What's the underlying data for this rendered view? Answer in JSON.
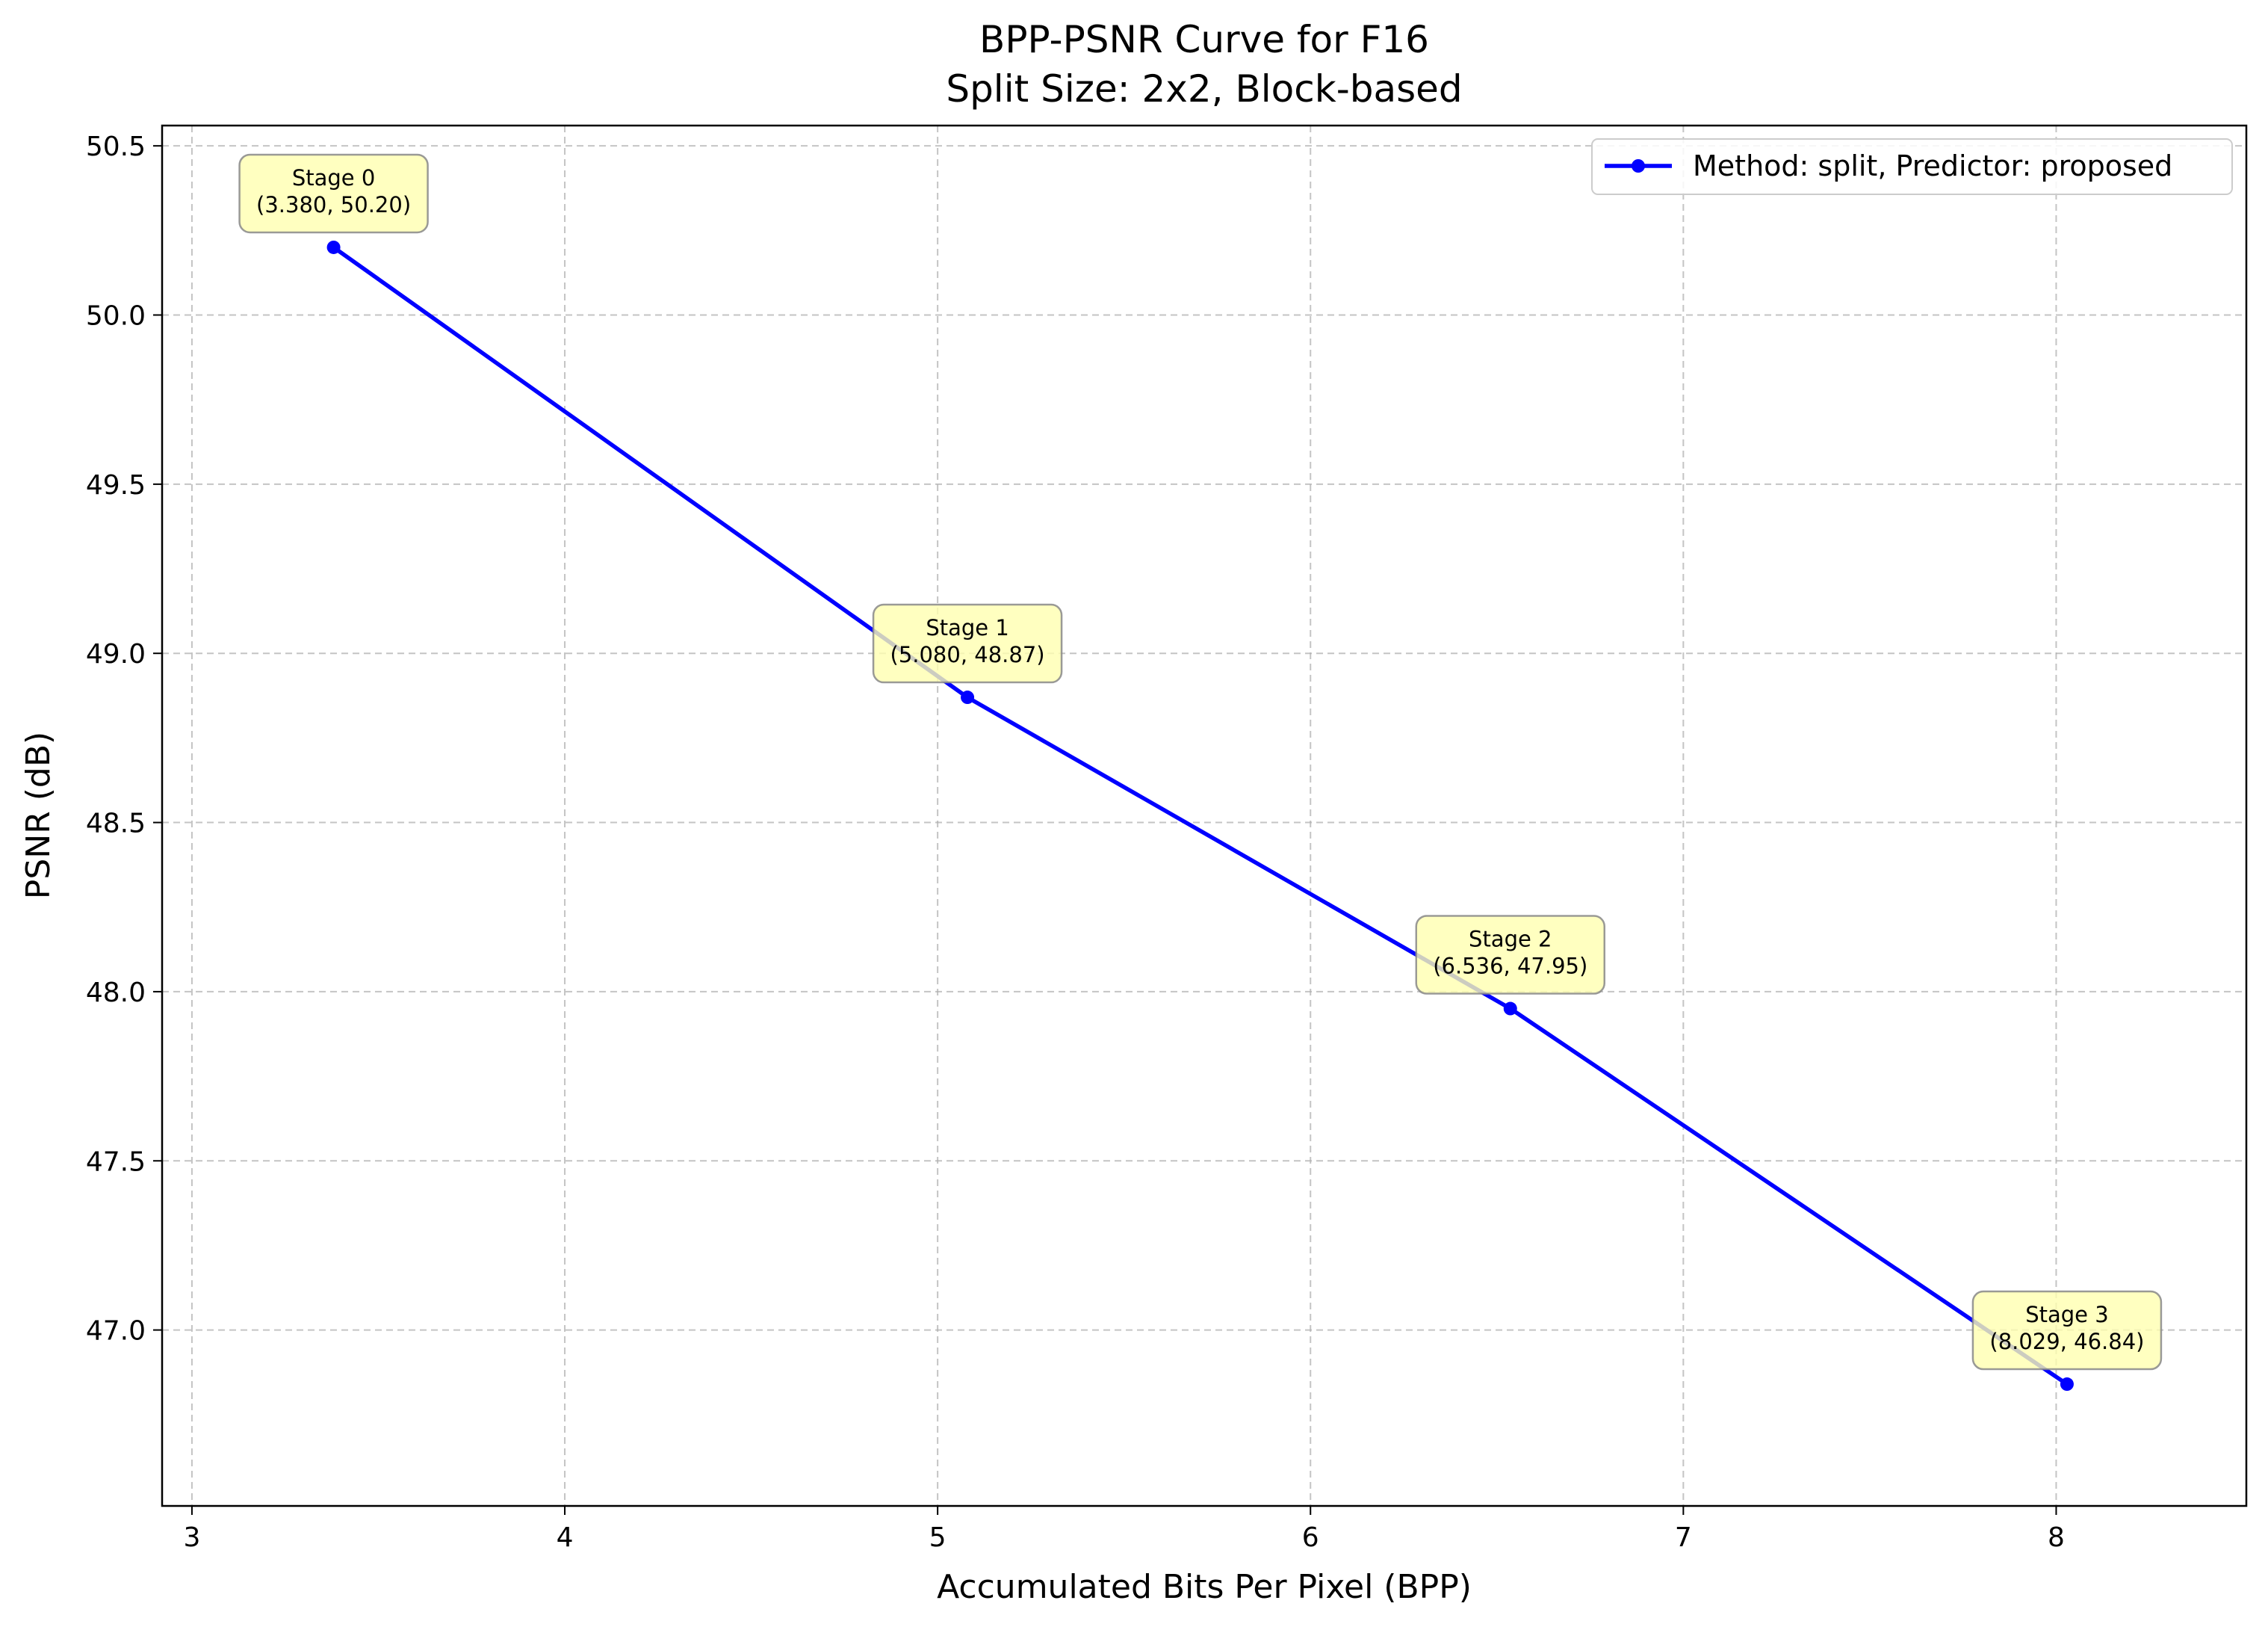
{
  "chart_data": {
    "type": "line",
    "title": [
      "BPP-PSNR Curve for F16",
      "Split Size: 2x2, Block-based"
    ],
    "xlabel": "Accumulated Bits Per Pixel (BPP)",
    "ylabel": "PSNR (dB)",
    "xlim": [
      2.92,
      8.51
    ],
    "ylim": [
      46.48,
      50.56
    ],
    "xticks": [
      3,
      4,
      5,
      6,
      7,
      8
    ],
    "xtick_labels": [
      "3",
      "4",
      "5",
      "6",
      "7",
      "8"
    ],
    "yticks": [
      47.0,
      47.5,
      48.0,
      48.5,
      49.0,
      49.5,
      50.0,
      50.5
    ],
    "ytick_labels": [
      "47.0",
      "47.5",
      "48.0",
      "48.5",
      "49.0",
      "49.5",
      "50.0",
      "50.5"
    ],
    "grid": true,
    "legend_position": "top-right",
    "series": [
      {
        "name": "Method: split, Predictor: proposed",
        "color": "#0000ff",
        "x": [
          3.38,
          5.08,
          6.536,
          8.029
        ],
        "y": [
          50.2,
          48.87,
          47.95,
          46.84
        ]
      }
    ],
    "annotations": [
      {
        "line1": "Stage 0",
        "line2": "(3.380, 50.20)",
        "x": 3.38,
        "y": 50.2
      },
      {
        "line1": "Stage 1",
        "line2": "(5.080, 48.87)",
        "x": 5.08,
        "y": 48.87
      },
      {
        "line1": "Stage 2",
        "line2": "(6.536, 47.95)",
        "x": 6.536,
        "y": 47.95
      },
      {
        "line1": "Stage 3",
        "line2": "(8.029, 46.84)",
        "x": 8.029,
        "y": 46.84
      }
    ],
    "annotation_box_color": "#ffffb0"
  }
}
